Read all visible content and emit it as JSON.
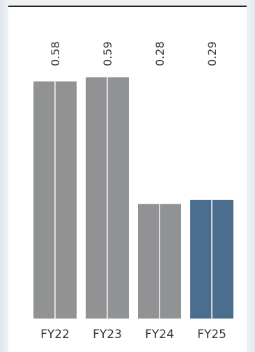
{
  "chart_data": {
    "type": "bar",
    "categories": [
      "FY22",
      "FY23",
      "FY24",
      "FY25"
    ],
    "values": [
      0.58,
      0.59,
      0.28,
      0.29
    ],
    "data_labels": [
      "0.58",
      "0.59",
      "0.28",
      "0.29"
    ],
    "title": "",
    "xlabel": "",
    "ylabel": "",
    "ylim": [
      0,
      0.6
    ],
    "grid": false,
    "legend": "none",
    "colors": {
      "default_bar": "#919294",
      "highlight_bar": "#4b6e8f",
      "bar_split": "#f7f7f7",
      "label": "#333333"
    },
    "highlight_index": 3
  }
}
